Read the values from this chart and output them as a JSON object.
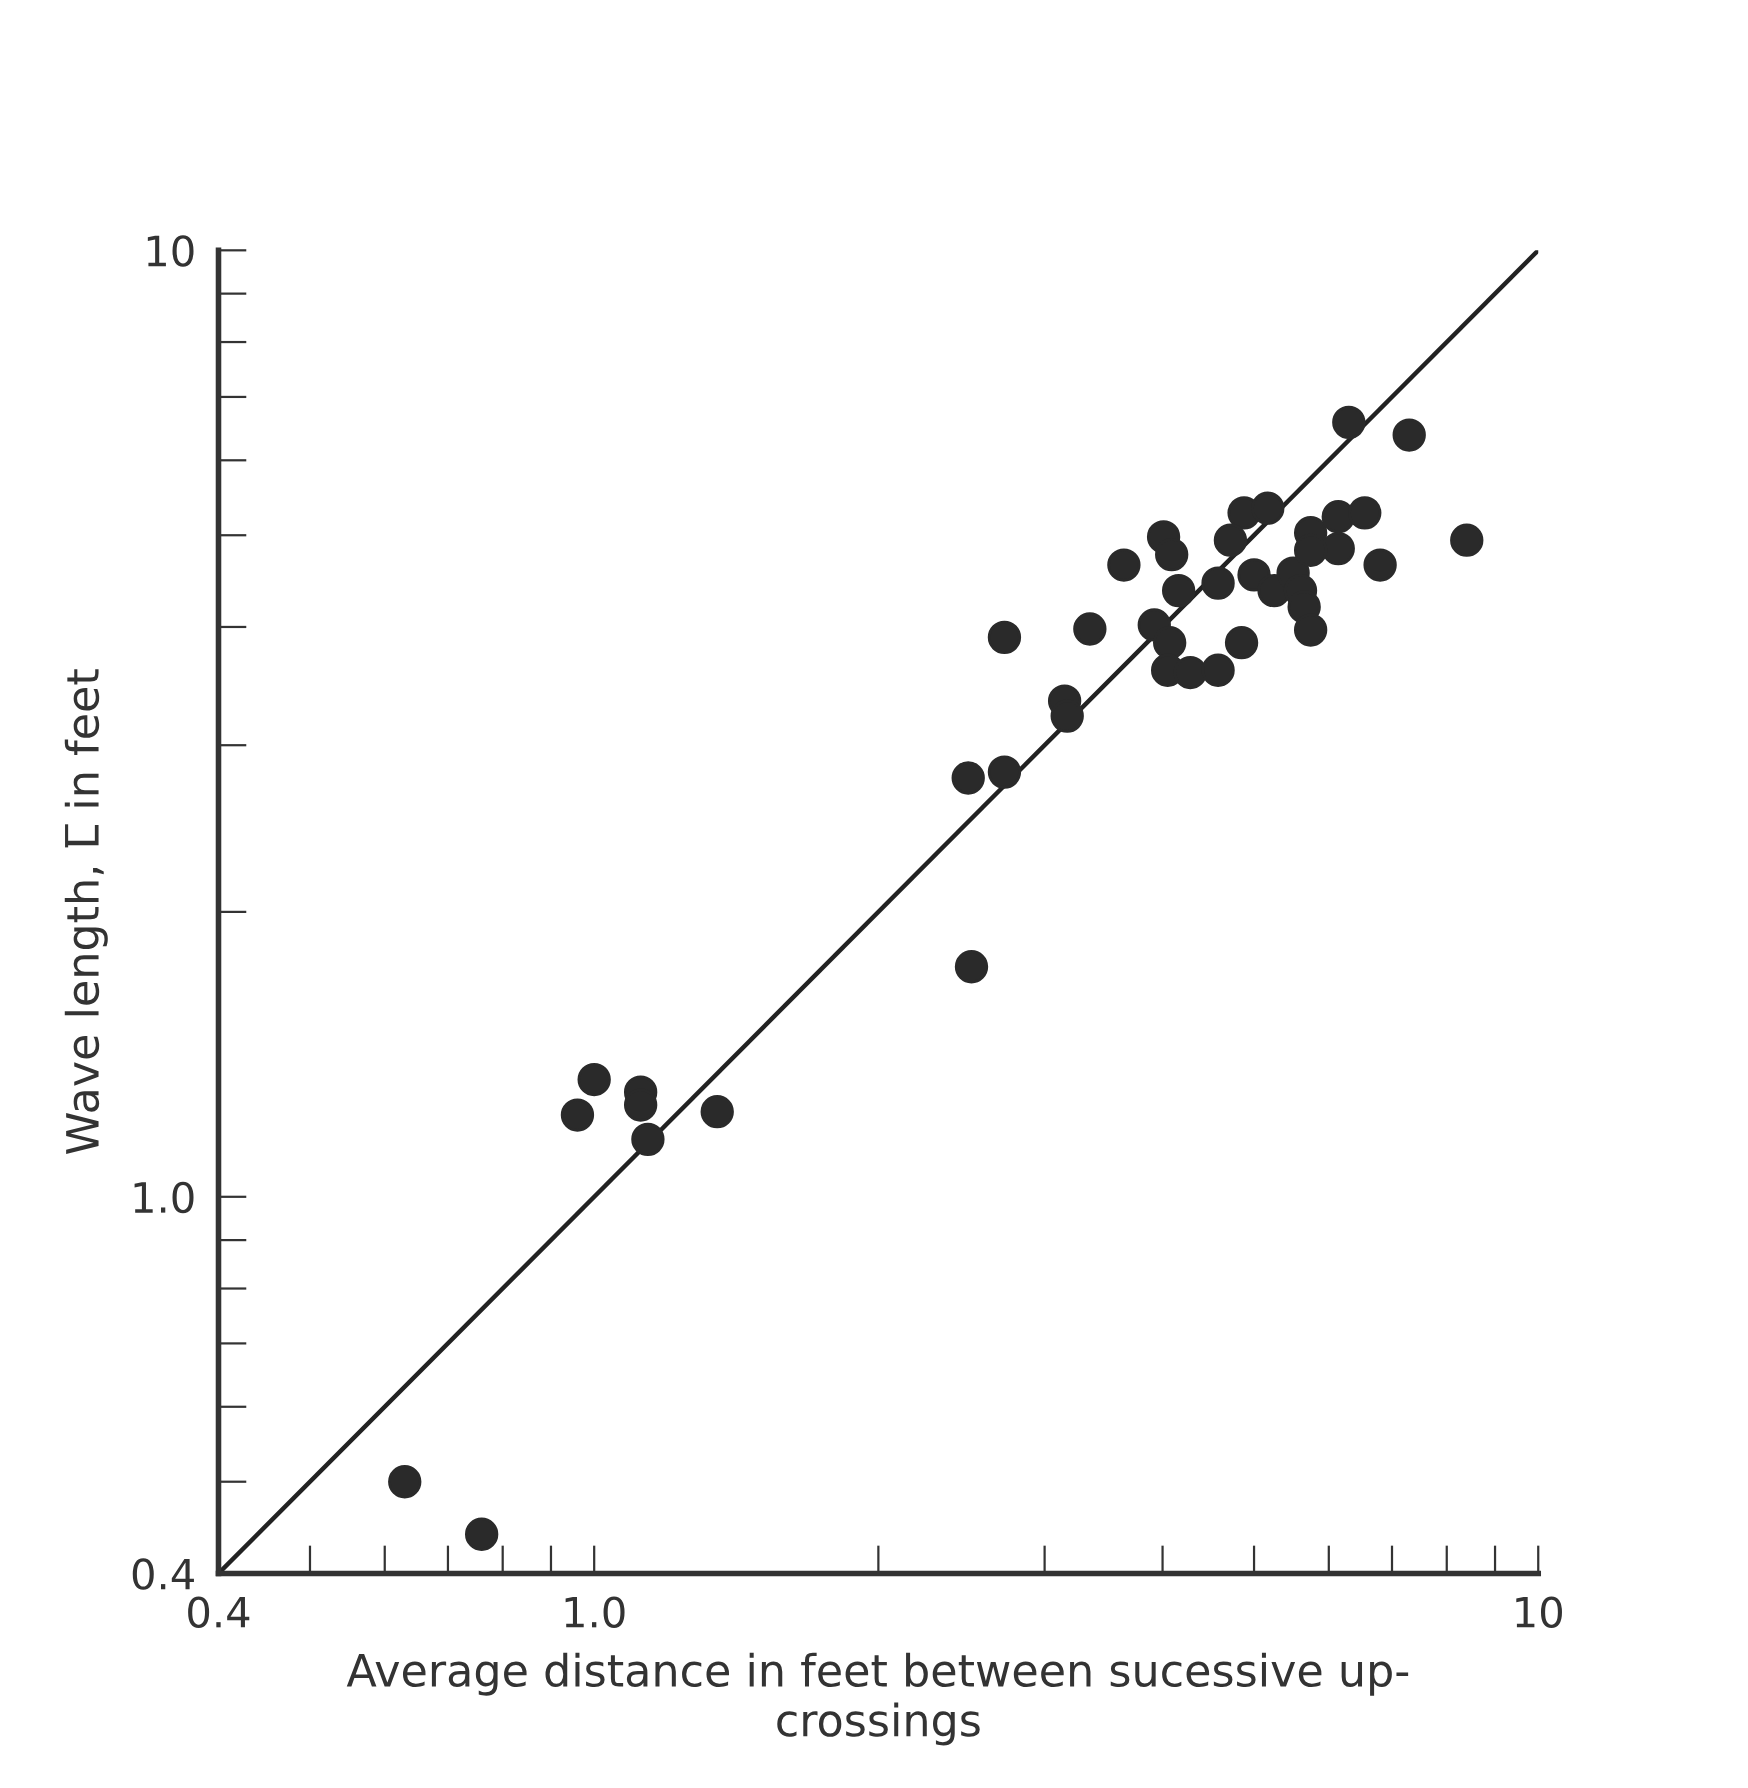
{
  "chart_data": {
    "type": "scatter",
    "xlabel": "Average distance in feet between sucessive up-\ncrossings",
    "ylabel": "Wave length, L̅ in feet",
    "log": "xy",
    "grid": false,
    "marker": "circle",
    "xlim": [
      0.4,
      10
    ],
    "ylim": [
      0.4,
      10
    ],
    "xticks": [
      0.4,
      {
        "value": 0.5,
        "label": null
      },
      {
        "value": 0.6,
        "label": null
      },
      {
        "value": 0.7,
        "label": null
      },
      {
        "value": 0.8,
        "label": null
      },
      {
        "value": 0.9,
        "label": null
      },
      {
        "value": 1,
        "label": "1.0"
      },
      {
        "value": 2,
        "label": null
      },
      {
        "value": 3,
        "label": null
      },
      {
        "value": 4,
        "label": null
      },
      {
        "value": 5,
        "label": null
      },
      {
        "value": 6,
        "label": null
      },
      {
        "value": 7,
        "label": null
      },
      {
        "value": 8,
        "label": null
      },
      {
        "value": 9,
        "label": null
      },
      10
    ],
    "yticks": [
      0.4,
      {
        "value": 0.5,
        "label": null
      },
      {
        "value": 0.6,
        "label": null
      },
      {
        "value": 0.7,
        "label": null
      },
      {
        "value": 0.8,
        "label": null
      },
      {
        "value": 0.9,
        "label": null
      },
      {
        "value": 1,
        "label": "1.0"
      },
      {
        "value": 2,
        "label": null
      },
      {
        "value": 3,
        "label": null
      },
      {
        "value": 4,
        "label": null
      },
      {
        "value": 5,
        "label": null
      },
      {
        "value": 6,
        "label": null
      },
      {
        "value": 7,
        "label": null
      },
      {
        "value": 8,
        "label": null
      },
      {
        "value": 9,
        "label": null
      },
      10
    ],
    "series": [
      {
        "type": "line",
        "marker": "none",
        "color": "#222222",
        "x": [
          0.4,
          10
        ],
        "values": [
          0.4,
          10
        ]
      },
      {
        "color": "#2a2a2a",
        "x": [
          0.63,
          0.76,
          1.0,
          0.96,
          1.12,
          1.12,
          1.14,
          1.35,
          2.51,
          2.49,
          2.72,
          2.72,
          3.15,
          3.17,
          3.35,
          3.64,
          6.3,
          7.3,
          8.4,
          4.88,
          5.17,
          4.72,
          4.01,
          4.09,
          4.16,
          4.58,
          3.92,
          4.07,
          4.05,
          4.28,
          4.58,
          4.85,
          5.0,
          5.25,
          5.5,
          5.74,
          6.14,
          6.55,
          6.14,
          6.8,
          5.6,
          5.65,
          5.74,
          5.74
        ],
        "values": [
          0.5,
          0.44,
          1.33,
          1.22,
          1.29,
          1.25,
          1.15,
          1.23,
          1.75,
          2.77,
          3.9,
          2.81,
          3.34,
          3.22,
          3.98,
          4.65,
          6.58,
          6.38,
          4.94,
          5.28,
          5.34,
          4.94,
          4.98,
          4.77,
          4.37,
          4.45,
          4.02,
          3.85,
          3.6,
          3.58,
          3.6,
          3.85,
          4.54,
          4.37,
          4.56,
          5.03,
          5.23,
          5.28,
          4.84,
          4.65,
          4.37,
          4.2,
          3.97,
          4.82
        ]
      }
    ]
  }
}
